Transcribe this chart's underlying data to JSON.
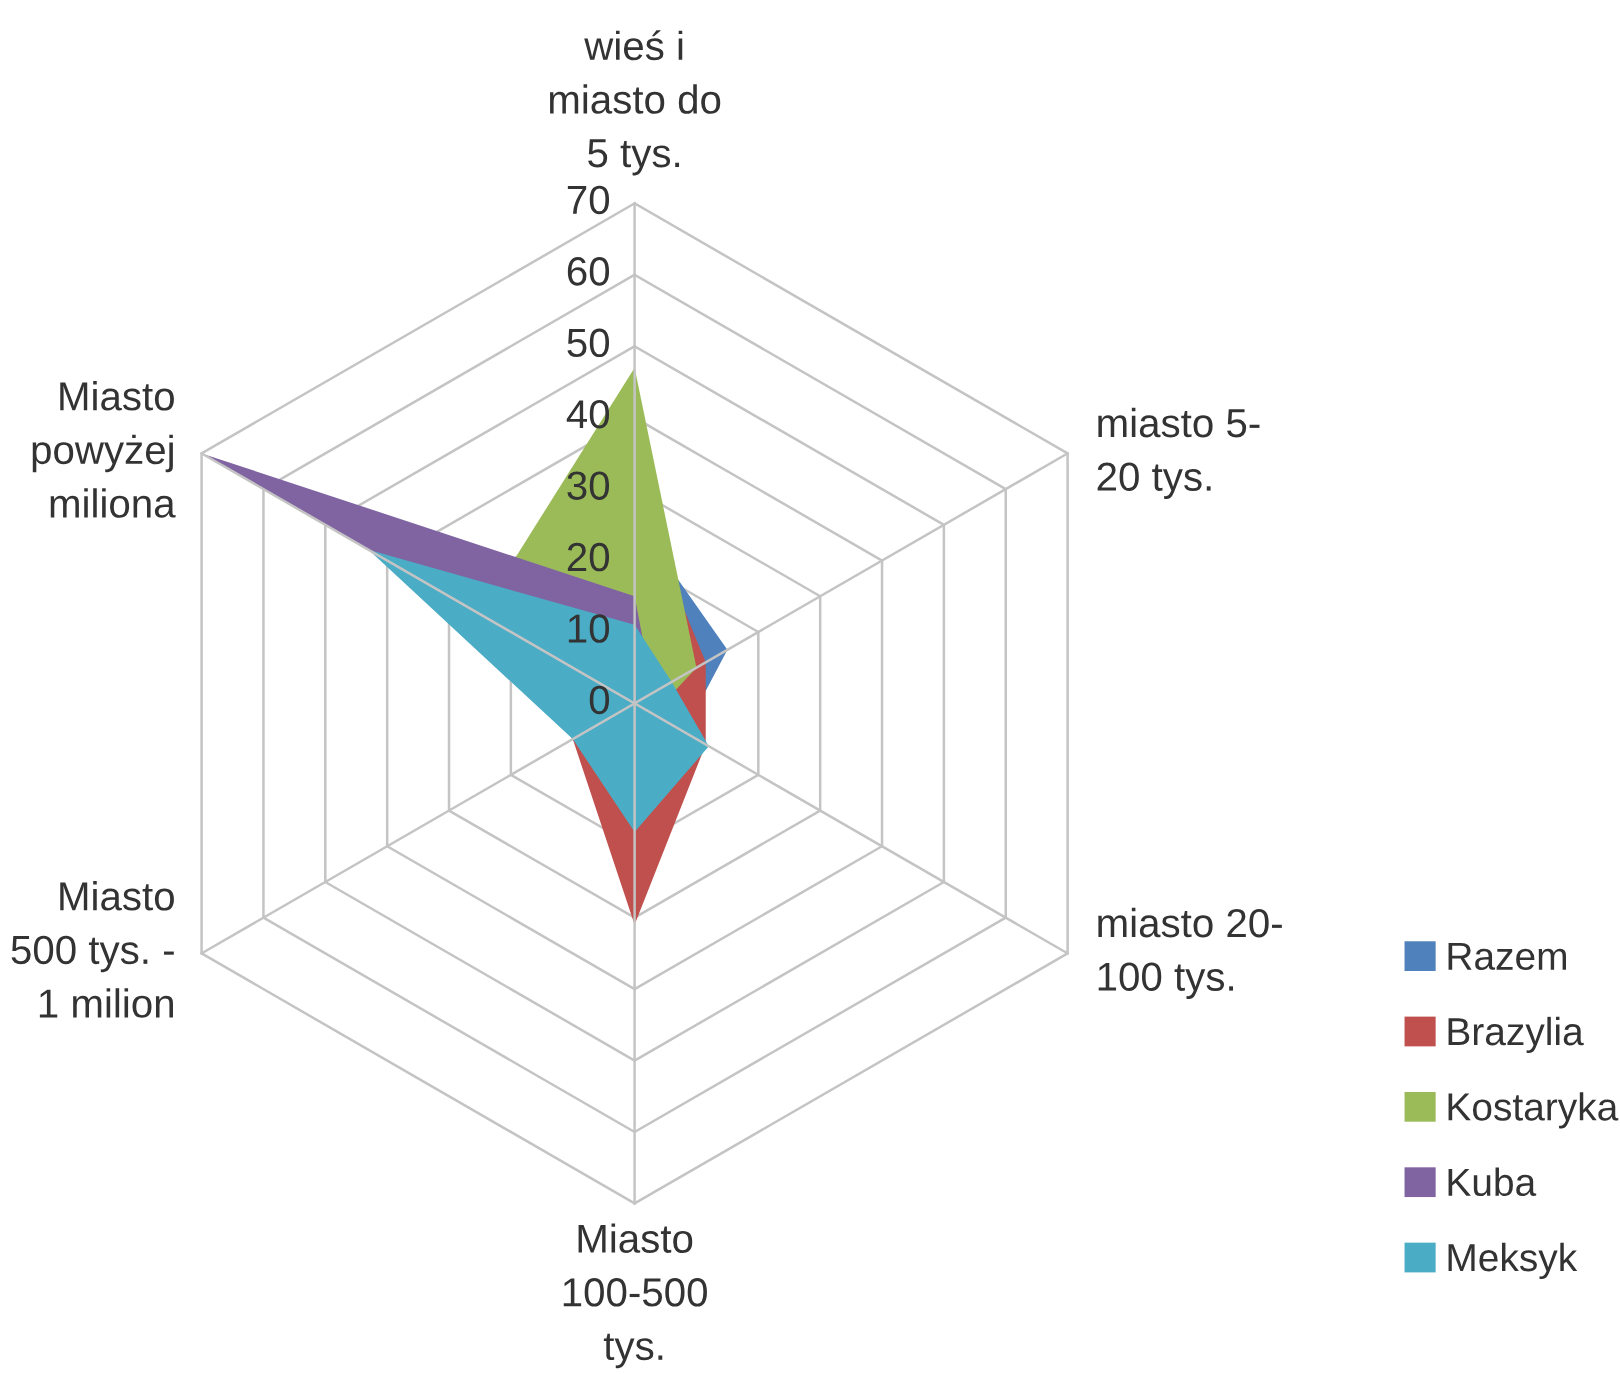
{
  "chart_data": {
    "type": "radar",
    "categories": [
      "wieś i\nmiasto do\n5 tys.",
      "miasto 5-\n20 tys.",
      "miasto 20-\n100 tys.",
      "Miasto\n100-500\ntys.",
      "Miasto\n500 tys. -\n1 milion",
      "Miasto\npowyżej\nmiliona"
    ],
    "series": [
      {
        "name": "Razem",
        "color": "#4f81bd",
        "values": [
          26,
          15,
          8,
          20,
          8,
          30
        ]
      },
      {
        "name": "Brazylia",
        "color": "#c0504d",
        "values": [
          30,
          11.5,
          11.5,
          31,
          10,
          15
        ]
      },
      {
        "name": "Kostaryka",
        "color": "#9bbb59",
        "values": [
          47,
          10,
          3,
          3,
          3,
          25
        ]
      },
      {
        "name": "Kuba",
        "color": "#8064a2",
        "values": [
          15,
          3,
          2,
          5,
          0,
          70
        ]
      },
      {
        "name": "Meksyk",
        "color": "#4bacc6",
        "values": [
          11,
          6,
          12,
          18,
          10,
          43
        ]
      }
    ],
    "ylim": [
      0,
      70
    ],
    "yticks": [
      0,
      10,
      20,
      30,
      40,
      50,
      60,
      70
    ],
    "grid": true,
    "legend": "right"
  }
}
